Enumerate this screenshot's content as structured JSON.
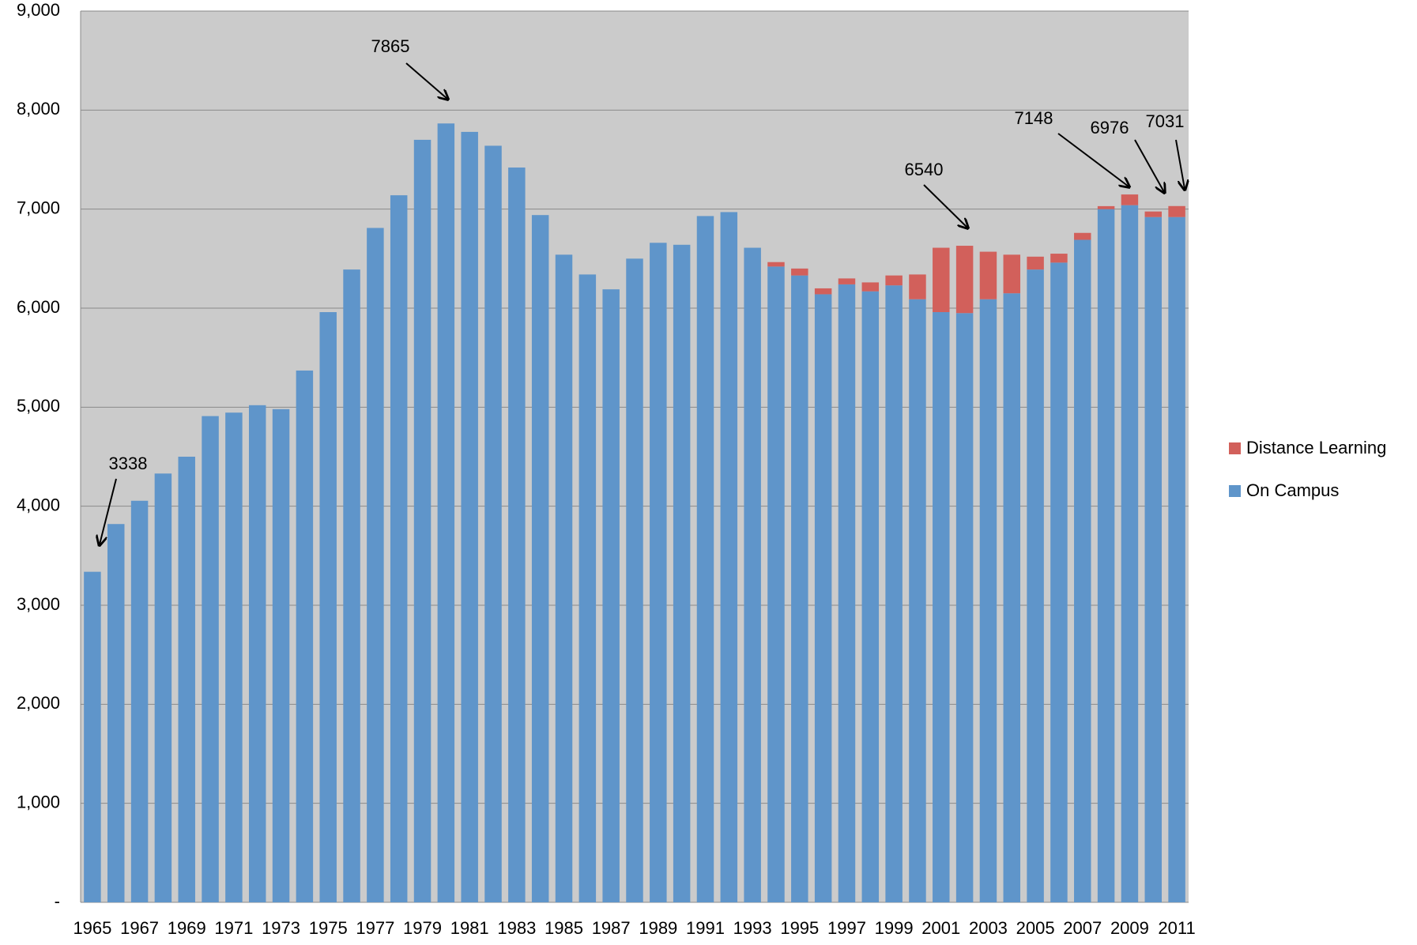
{
  "chart_data": {
    "type": "stacked-bar",
    "categories": [
      "1965",
      null,
      "1967",
      null,
      "1969",
      null,
      "1971",
      null,
      "1973",
      null,
      "1975",
      null,
      "1977",
      null,
      "1979",
      null,
      "1981",
      null,
      "1983",
      null,
      "1985",
      null,
      "1987",
      null,
      "1989",
      null,
      "1991",
      null,
      "1993",
      null,
      "1995",
      null,
      "1997",
      null,
      "1999",
      null,
      "2001",
      null,
      "2003",
      null,
      "2005",
      null,
      "2007",
      null,
      "2009",
      null,
      "2011"
    ],
    "series": [
      {
        "name": "On Campus",
        "color": "#5f95ca",
        "values": [
          3338,
          3820,
          4055,
          4330,
          4500,
          4910,
          4945,
          5020,
          4980,
          5370,
          5960,
          6390,
          6810,
          7140,
          7700,
          7865,
          7780,
          7640,
          7420,
          6940,
          6540,
          6340,
          6190,
          6500,
          6660,
          6640,
          6930,
          6970,
          6610,
          6420,
          6330,
          6140,
          6240,
          6170,
          6230,
          6090,
          5960,
          5950,
          6090,
          6150,
          6390,
          6460,
          6690,
          7000,
          7040,
          6920,
          6920
        ]
      },
      {
        "name": "Distance Learning",
        "color": "#d2605b",
        "values": [
          0,
          0,
          0,
          0,
          0,
          0,
          0,
          0,
          0,
          0,
          0,
          0,
          0,
          0,
          0,
          0,
          0,
          0,
          0,
          0,
          0,
          0,
          0,
          0,
          0,
          0,
          0,
          0,
          0,
          45,
          70,
          60,
          60,
          90,
          100,
          250,
          650,
          680,
          480,
          390,
          130,
          90,
          70,
          30,
          108,
          56,
          111
        ]
      }
    ],
    "ylim": [
      0,
      9000
    ],
    "yticks": [
      {
        "value": 0,
        "label": "-"
      },
      {
        "value": 1000,
        "label": "1,000"
      },
      {
        "value": 2000,
        "label": "2,000"
      },
      {
        "value": 3000,
        "label": "3,000"
      },
      {
        "value": 4000,
        "label": "4,000"
      },
      {
        "value": 5000,
        "label": "5,000"
      },
      {
        "value": 6000,
        "label": "6,000"
      },
      {
        "value": 7000,
        "label": "7,000"
      },
      {
        "value": 8000,
        "label": "8,000"
      },
      {
        "value": 9000,
        "label": "9,000"
      }
    ],
    "grid": true,
    "legend_position": "right",
    "annotations": [
      "3338",
      "7865",
      "6540",
      "7148",
      "6976",
      "7031"
    ]
  }
}
